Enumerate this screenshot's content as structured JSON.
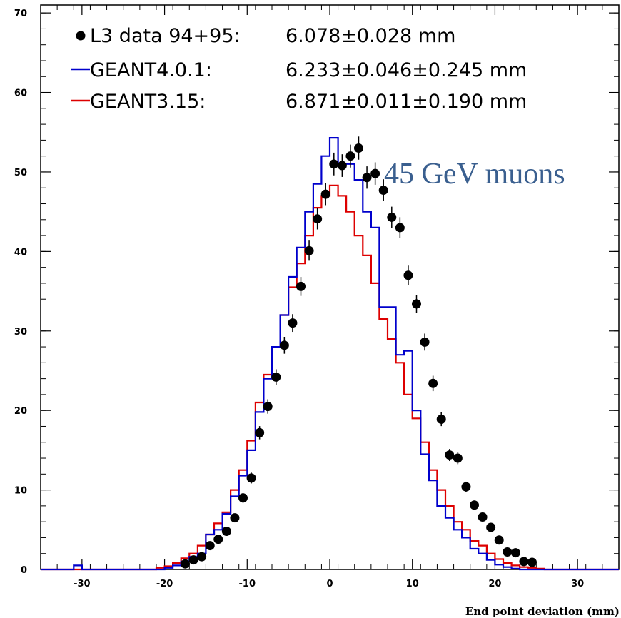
{
  "chart_data": {
    "type": "histogram",
    "xlabel": "End point deviation (mm)",
    "ylabel": "",
    "xlim": [
      -35,
      35
    ],
    "ylim": [
      0,
      71
    ],
    "x_ticks": [
      -30,
      -20,
      -10,
      0,
      10,
      20,
      30
    ],
    "y_ticks": [
      0,
      10,
      20,
      30,
      40,
      50,
      60,
      70
    ],
    "grid": false,
    "legend_position": "top-left",
    "annotation": {
      "text": "45 GeV muons",
      "color": "#3a5f8f"
    },
    "bin_edges_start": -35,
    "bin_width": 1,
    "series": [
      {
        "name": "L3 data 94+95:",
        "value_text": "6.078±0.028 mm",
        "kind": "points",
        "color": "#000000",
        "points": [
          {
            "x": -17.5,
            "y": 0.7
          },
          {
            "x": -16.5,
            "y": 1.2
          },
          {
            "x": -15.5,
            "y": 1.6
          },
          {
            "x": -14.5,
            "y": 3.0
          },
          {
            "x": -13.5,
            "y": 3.8
          },
          {
            "x": -12.5,
            "y": 4.8
          },
          {
            "x": -11.5,
            "y": 6.5
          },
          {
            "x": -10.5,
            "y": 9.0
          },
          {
            "x": -9.5,
            "y": 11.5
          },
          {
            "x": -8.5,
            "y": 17.2
          },
          {
            "x": -7.5,
            "y": 20.5
          },
          {
            "x": -6.5,
            "y": 24.2
          },
          {
            "x": -5.5,
            "y": 28.2
          },
          {
            "x": -4.5,
            "y": 31.0
          },
          {
            "x": -3.5,
            "y": 35.6
          },
          {
            "x": -2.5,
            "y": 40.1
          },
          {
            "x": -1.5,
            "y": 44.1
          },
          {
            "x": -0.5,
            "y": 47.2
          },
          {
            "x": 0.5,
            "y": 51.0
          },
          {
            "x": 1.5,
            "y": 50.8
          },
          {
            "x": 2.5,
            "y": 52.0
          },
          {
            "x": 3.5,
            "y": 53.0
          },
          {
            "x": 4.5,
            "y": 49.3
          },
          {
            "x": 5.5,
            "y": 49.8
          },
          {
            "x": 6.5,
            "y": 47.7
          },
          {
            "x": 7.5,
            "y": 44.3
          },
          {
            "x": 8.5,
            "y": 43.0
          },
          {
            "x": 9.5,
            "y": 37.0
          },
          {
            "x": 10.5,
            "y": 33.4
          },
          {
            "x": 11.5,
            "y": 28.6
          },
          {
            "x": 12.5,
            "y": 23.4
          },
          {
            "x": 13.5,
            "y": 18.9
          },
          {
            "x": 14.5,
            "y": 14.4
          },
          {
            "x": 15.5,
            "y": 14.0
          },
          {
            "x": 16.5,
            "y": 10.4
          },
          {
            "x": 17.5,
            "y": 8.1
          },
          {
            "x": 18.5,
            "y": 6.6
          },
          {
            "x": 19.5,
            "y": 5.3
          },
          {
            "x": 20.5,
            "y": 3.7
          },
          {
            "x": 21.5,
            "y": 2.2
          },
          {
            "x": 22.5,
            "y": 2.1
          },
          {
            "x": 23.5,
            "y": 1.0
          },
          {
            "x": 24.5,
            "y": 0.9
          }
        ]
      },
      {
        "name": "GEANT4.0.1:",
        "value_text": "6.233±0.046±0.245 mm",
        "kind": "step",
        "color": "#0000cc",
        "values": [
          0,
          0,
          0,
          0,
          0.5,
          0,
          0,
          0,
          0,
          0,
          0,
          0,
          0,
          0,
          0,
          0.2,
          0.5,
          1.0,
          1.6,
          2.0,
          4.4,
          5.0,
          7.0,
          9.2,
          11.8,
          15.0,
          19.8,
          24.0,
          28.0,
          32.0,
          36.8,
          40.5,
          45.0,
          48.5,
          52.0,
          54.3,
          51.0,
          51.0,
          49.0,
          45.0,
          43.0,
          33.0,
          33.0,
          27.0,
          27.5,
          20.0,
          14.5,
          11.2,
          8.0,
          6.5,
          5.0,
          4.0,
          2.6,
          2.0,
          1.2,
          0.6,
          0.3,
          0.1,
          0,
          0,
          0,
          0,
          0,
          0,
          0,
          0,
          0,
          0,
          0,
          0
        ]
      },
      {
        "name": "GEANT3.15:",
        "value_text": "6.871±0.011±0.190 mm",
        "kind": "step",
        "color": "#dd0000",
        "values": [
          0,
          0,
          0,
          0,
          0,
          0,
          0,
          0,
          0,
          0,
          0,
          0,
          0,
          0,
          0.2,
          0.4,
          0.8,
          1.4,
          2.0,
          3.0,
          4.4,
          5.8,
          7.2,
          10.0,
          12.5,
          16.2,
          21.0,
          24.5,
          28.0,
          32.0,
          35.5,
          38.5,
          42.0,
          45.5,
          47.0,
          48.3,
          47.0,
          45.0,
          42.0,
          39.5,
          36.0,
          31.5,
          29.0,
          26.0,
          22.0,
          19.0,
          16.0,
          12.5,
          10.0,
          8.0,
          6.0,
          5.0,
          3.6,
          3.0,
          2.0,
          1.3,
          0.8,
          0.5,
          0.3,
          0.2,
          0.1,
          0,
          0,
          0,
          0,
          0,
          0,
          0,
          0,
          0
        ]
      }
    ]
  }
}
